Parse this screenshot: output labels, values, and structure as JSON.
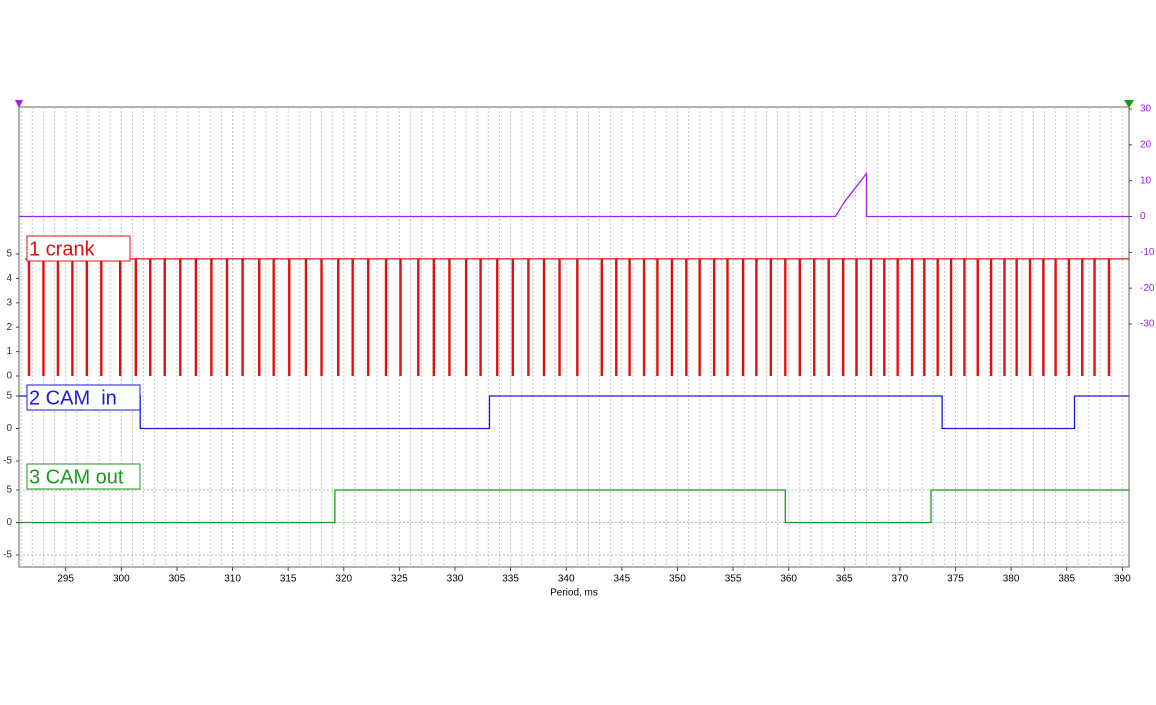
{
  "chart_data": {
    "type": "line",
    "xlabel": "Period, ms",
    "xlim": [
      290.8,
      390.6
    ],
    "xticks": [
      295,
      300,
      305,
      310,
      315,
      320,
      325,
      330,
      335,
      340,
      345,
      350,
      355,
      360,
      365,
      370,
      375,
      380,
      385,
      390
    ],
    "xgrid": [
      291,
      292,
      293,
      294,
      295,
      296,
      297,
      298,
      299,
      300,
      301,
      302,
      303,
      304,
      305,
      306,
      307,
      308,
      309,
      310,
      311,
      312,
      313,
      314,
      315,
      316,
      317,
      318,
      319,
      320,
      321,
      322,
      323,
      324,
      325,
      326,
      327,
      328,
      329,
      330,
      331,
      332,
      333,
      334,
      335,
      336,
      337,
      338,
      339,
      340,
      341,
      342,
      343,
      344,
      345,
      346,
      347,
      348,
      349,
      350,
      351,
      352,
      353,
      354,
      355,
      356,
      357,
      358,
      359,
      360,
      361,
      362,
      363,
      364,
      365,
      366,
      367,
      368,
      369,
      370,
      371,
      372,
      373,
      374,
      375,
      376,
      377,
      378,
      379,
      380,
      381,
      382,
      383,
      384,
      385,
      386,
      387,
      388,
      389,
      390
    ],
    "series": [
      {
        "color": "#a020f0",
        "axis": "y2",
        "ylim": [
          -30,
          30
        ],
        "yticks": [
          30,
          20,
          10,
          0,
          -10,
          -20,
          -30
        ],
        "x": [
          290.8,
          364.2,
          365,
          366,
          367,
          367,
          390.6
        ],
        "values": [
          0,
          0,
          4,
          8,
          12,
          0,
          0
        ]
      },
      {
        "name": "1 crank",
        "color": "#e01010",
        "type": "pulse",
        "ylim": [
          0,
          5
        ],
        "yticks": [
          0,
          1,
          2,
          3,
          4,
          5
        ],
        "high": 4.8,
        "low": 0,
        "x": [
          291.7,
          293.0,
          294.3,
          295.6,
          296.9,
          298.2,
          299.9,
          301.3,
          302.6,
          303.9,
          305.3,
          306.7,
          308.1,
          309.5,
          310.9,
          312.4,
          313.7,
          315.1,
          316.6,
          318.0,
          319.5,
          320.8,
          322.2,
          323.8,
          325.1,
          326.7,
          328.1,
          329.5,
          331.0,
          332.3,
          333.8,
          335.2,
          336.6,
          338.0,
          339.4,
          341.0,
          343.2,
          344.5,
          345.7,
          347.0,
          348.2,
          349.5,
          350.8,
          352.0,
          353.3,
          354.5,
          355.9,
          357.1,
          358.4,
          359.7,
          361.0,
          362.3,
          363.6,
          364.9,
          366.1,
          367.4,
          368.6,
          369.8,
          371.1,
          372.2,
          373.4,
          374.6,
          375.8,
          377.0,
          378.2,
          379.4,
          380.5,
          381.7,
          382.9,
          384.0,
          385.2,
          386.4,
          387.5,
          388.8
        ]
      },
      {
        "name": "2 CAM  in",
        "color": "#1a1adc",
        "ylim": [
          -5,
          5
        ],
        "yticks": [
          5,
          0,
          -5
        ],
        "x": [
          290.8,
          301.7,
          301.7,
          333.1,
          333.1,
          373.8,
          373.8,
          385.7,
          385.7,
          390.6
        ],
        "values": [
          5,
          5,
          0,
          0,
          5,
          5,
          0,
          0,
          5,
          5
        ]
      },
      {
        "name": "3 CAM out",
        "color": "#1a9a1a",
        "ylim": [
          -5,
          5
        ],
        "yticks": [
          5,
          0,
          -5
        ],
        "grid": true,
        "x": [
          290.8,
          319.2,
          319.2,
          359.7,
          359.7,
          372.8,
          372.8,
          390.6
        ],
        "values": [
          0,
          0,
          5,
          5,
          0,
          0,
          5,
          5
        ]
      }
    ]
  }
}
